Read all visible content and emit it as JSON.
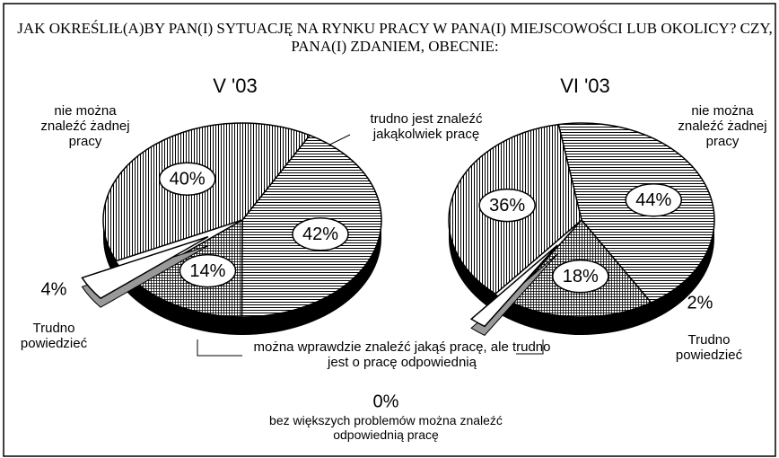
{
  "chart_data": {
    "type": "pie",
    "title": "JAK OKREŚLIŁ(A)BY PAN(I) SYTUACJĘ NA RYNKU PRACY W PANA(I) MIEJSCOWOŚCI LUB OKOLICY? CZY, PANA(I) ZDANIEM, OBECNIE:",
    "categories": [
      "trudno jest znaleźć jakąkolwiek pracę",
      "można wprawdzie znaleźć jakąś pracę, ale trudno jest o pracę odpowiednią",
      "Trudno powiedzieć",
      "nie można znaleźć żadnej pracy"
    ],
    "series": [
      {
        "name": "V '03",
        "values": [
          42,
          14,
          4,
          40
        ],
        "value_labels": [
          "42%",
          "14%",
          "4%",
          "40%"
        ]
      },
      {
        "name": "VI '03",
        "values": [
          44,
          18,
          2,
          36
        ],
        "value_labels": [
          "44%",
          "18%",
          "2%",
          "36%"
        ]
      }
    ],
    "annotation": {
      "label": "bez większych problemów można znaleźć odpowiednią pracę",
      "value": 0,
      "value_label": "0%"
    }
  }
}
